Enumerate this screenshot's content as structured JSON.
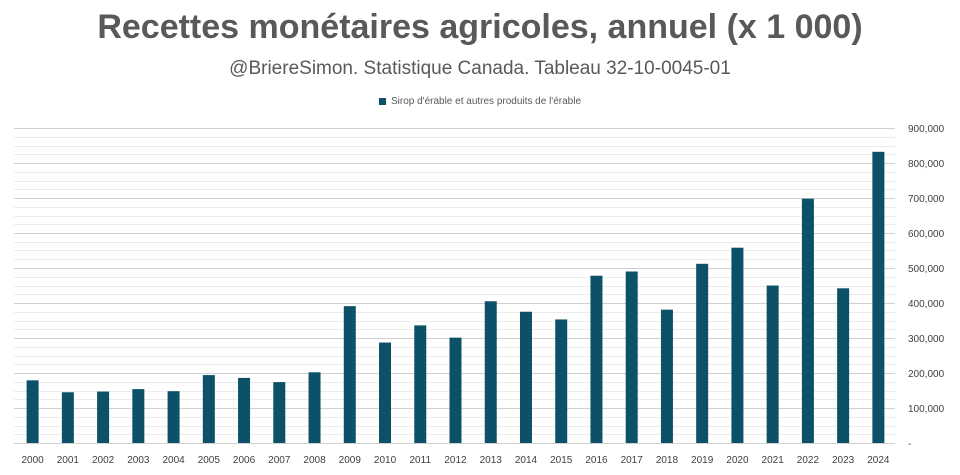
{
  "colors": {
    "bar": "#0d5168",
    "grid": "#d9d9d9",
    "text": "#595959"
  },
  "chart_data": {
    "type": "bar",
    "title": "Recettes monétaires agricoles, annuel (x 1 000)",
    "subtitle": "@BriereSimon. Statistique Canada. Tableau 32-10-0045-01",
    "legend_position": "top",
    "grid": true,
    "categories": [
      "2000",
      "2001",
      "2002",
      "2003",
      "2004",
      "2005",
      "2006",
      "2007",
      "2008",
      "2009",
      "2010",
      "2011",
      "2012",
      "2013",
      "2014",
      "2015",
      "2016",
      "2017",
      "2018",
      "2019",
      "2020",
      "2021",
      "2022",
      "2023",
      "2024"
    ],
    "series": [
      {
        "name": "Sirop d'érable et autres produits de l'érable",
        "values": [
          179000,
          145000,
          147000,
          154000,
          148000,
          194000,
          186000,
          174000,
          202000,
          391000,
          287000,
          336000,
          301000,
          405000,
          375000,
          353000,
          478000,
          490000,
          381000,
          512000,
          558000,
          450000,
          698000,
          442000,
          832000
        ]
      }
    ],
    "ylim": [
      0,
      900000
    ],
    "yticks": [
      0,
      100000,
      200000,
      300000,
      400000,
      500000,
      600000,
      700000,
      800000,
      900000
    ],
    "ytick_labels": [
      "-",
      "100,000",
      "200,000",
      "300,000",
      "400,000",
      "500,000",
      "600,000",
      "700,000",
      "800,000",
      "900,000"
    ]
  }
}
